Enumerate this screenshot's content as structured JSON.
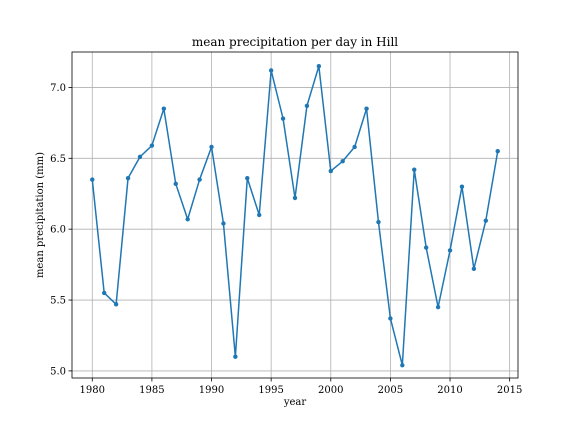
{
  "chart_data": {
    "type": "line",
    "title": "mean precipitation per day in Hill",
    "xlabel": "year",
    "ylabel": "mean precipitation (mm)",
    "xlim": [
      1978.3,
      2015.7
    ],
    "ylim": [
      4.95,
      7.25
    ],
    "xticks": [
      1980,
      1985,
      1990,
      1995,
      2000,
      2005,
      2010,
      2015
    ],
    "yticks": [
      5.0,
      5.5,
      6.0,
      6.5,
      7.0
    ],
    "grid": true,
    "color": "#1f77b4",
    "series": [
      {
        "x": [
          1980,
          1981,
          1982,
          1983,
          1984,
          1985,
          1986,
          1987,
          1988,
          1989,
          1990,
          1991,
          1992,
          1993,
          1994,
          1995,
          1996,
          1997,
          1998,
          1999,
          2000,
          2001,
          2002,
          2003,
          2004,
          2005,
          2006,
          2007,
          2008,
          2009,
          2010,
          2011,
          2012,
          2013,
          2014
        ],
        "values": [
          6.35,
          5.55,
          5.47,
          6.36,
          6.51,
          6.59,
          6.85,
          6.32,
          6.07,
          6.35,
          6.58,
          6.04,
          5.1,
          6.36,
          6.1,
          7.12,
          6.78,
          6.22,
          6.87,
          7.15,
          6.41,
          6.48,
          6.58,
          6.85,
          6.05,
          5.37,
          5.04,
          6.42,
          5.87,
          5.45,
          5.85,
          6.3,
          5.72,
          6.06,
          6.55
        ]
      }
    ]
  }
}
